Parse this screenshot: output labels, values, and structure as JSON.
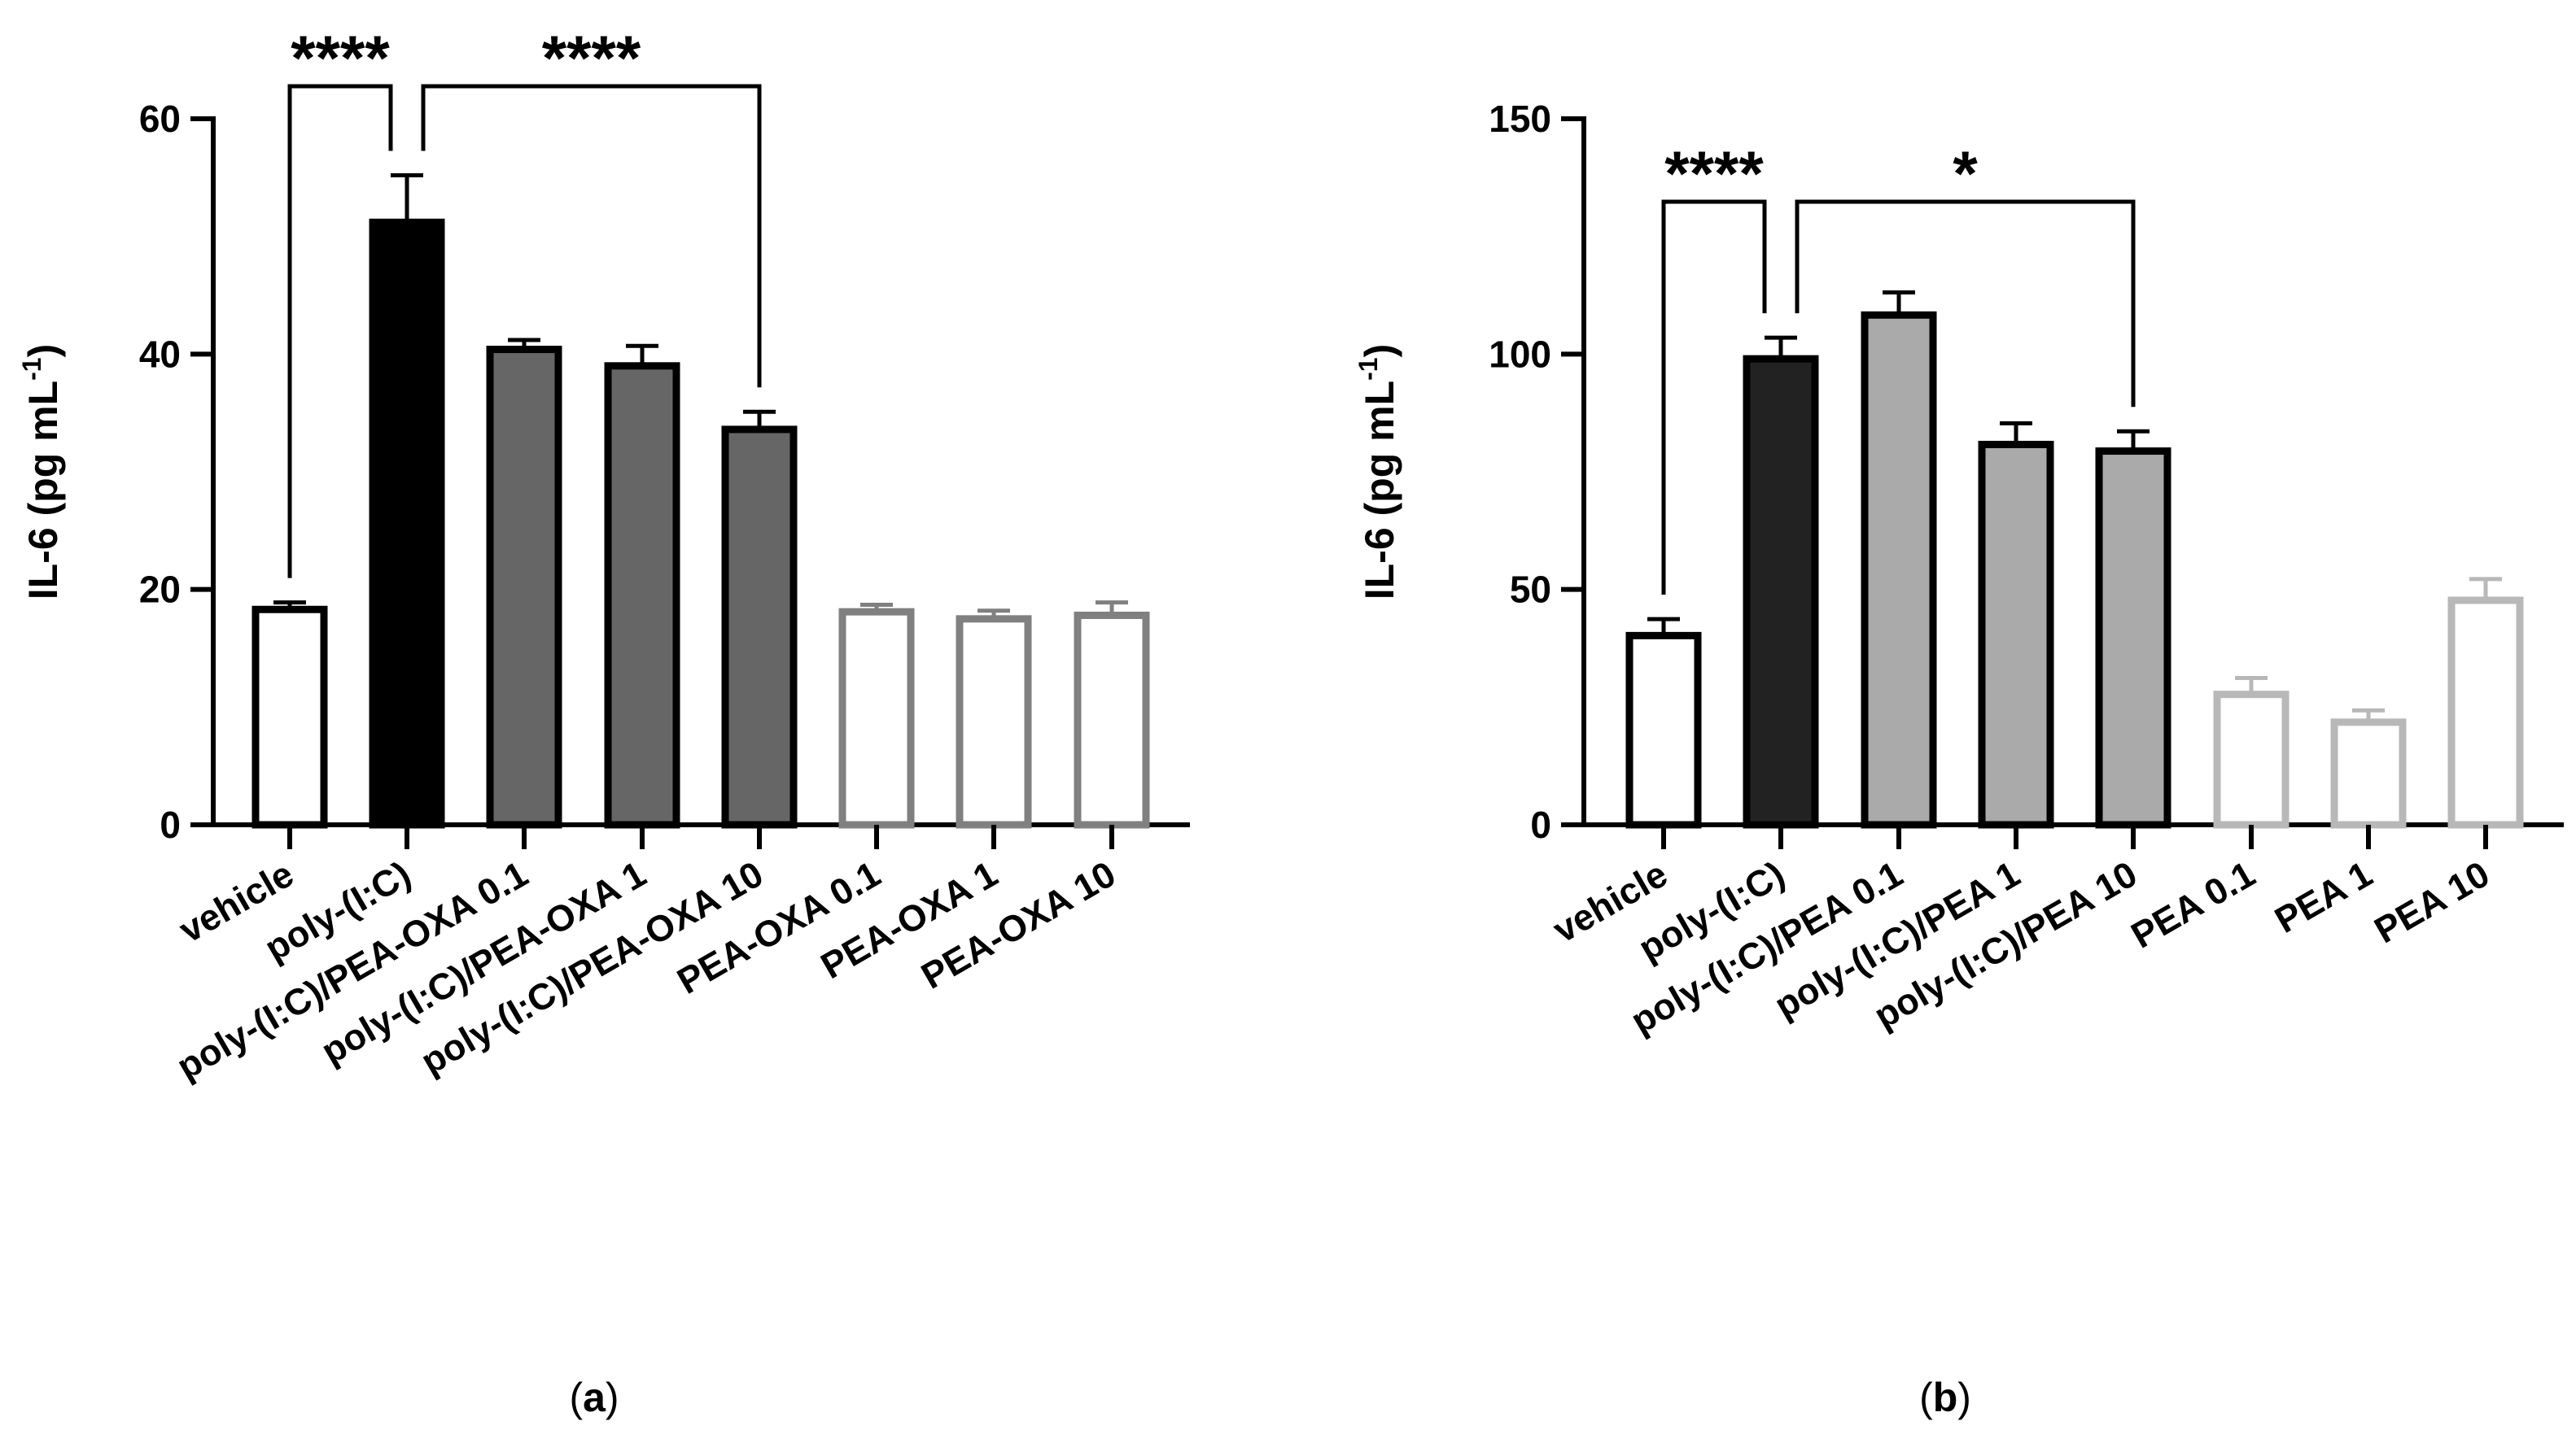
{
  "chart_data": [
    {
      "type": "bar",
      "panel_label": "(a)",
      "panel_letter": "a",
      "ylabel": "IL-6 (pg mL",
      "ylabel_sup": "-1",
      "ylabel_close": ")",
      "ylim": [
        0,
        60
      ],
      "yticks": [
        0,
        20,
        40,
        60
      ],
      "categories": [
        "vehicle",
        "poly-(I:C)",
        "poly-(I:C)/PEA-OXA 0.1",
        "poly-(I:C)/PEA-OXA 1",
        "poly-(I:C)/PEA-OXA 10",
        "PEA-OXA 0.1",
        "PEA-OXA 1",
        "PEA-OXA 10"
      ],
      "values": [
        18.3,
        51.2,
        40.4,
        39.0,
        33.6,
        18.1,
        17.5,
        17.8
      ],
      "errors": [
        0.6,
        4.0,
        0.8,
        1.7,
        1.5,
        0.6,
        0.7,
        1.1
      ],
      "fill_colors": [
        "#ffffff",
        "#000000",
        "#666666",
        "#666666",
        "#666666",
        "#ffffff",
        "#ffffff",
        "#ffffff"
      ],
      "stroke_colors": [
        "#000000",
        "#000000",
        "#000000",
        "#000000",
        "#000000",
        "#808080",
        "#808080",
        "#808080"
      ],
      "significance": [
        {
          "from": 0,
          "to": 1,
          "label": "****"
        },
        {
          "from": 1,
          "to": 4,
          "label": "****"
        }
      ]
    },
    {
      "type": "bar",
      "panel_label": "(b)",
      "panel_letter": "b",
      "ylabel": "IL-6 (pg mL",
      "ylabel_sup": "-1",
      "ylabel_close": ")",
      "ylim": [
        0,
        150
      ],
      "yticks": [
        0,
        50,
        100,
        150
      ],
      "categories": [
        "vehicle",
        "poly-(I:C)",
        "poly-(I:C)/PEA 0.1",
        "poly-(I:C)/PEA 1",
        "poly-(I:C)/PEA 10",
        "PEA 0.1",
        "PEA 1",
        "PEA 10"
      ],
      "values": [
        40.2,
        99.0,
        108.3,
        80.8,
        79.4,
        27.7,
        21.8,
        47.7
      ],
      "errors": [
        3.5,
        4.5,
        4.8,
        4.5,
        4.2,
        3.5,
        2.5,
        4.5
      ],
      "fill_colors": [
        "#ffffff",
        "#222222",
        "#aaaaaa",
        "#aaaaaa",
        "#aaaaaa",
        "#ffffff",
        "#ffffff",
        "#ffffff"
      ],
      "stroke_colors": [
        "#000000",
        "#000000",
        "#000000",
        "#000000",
        "#000000",
        "#b8b8b8",
        "#b8b8b8",
        "#b8b8b8"
      ],
      "significance": [
        {
          "from": 0,
          "to": 1,
          "label": "****"
        },
        {
          "from": 1,
          "to": 4,
          "label": "*"
        }
      ]
    }
  ]
}
